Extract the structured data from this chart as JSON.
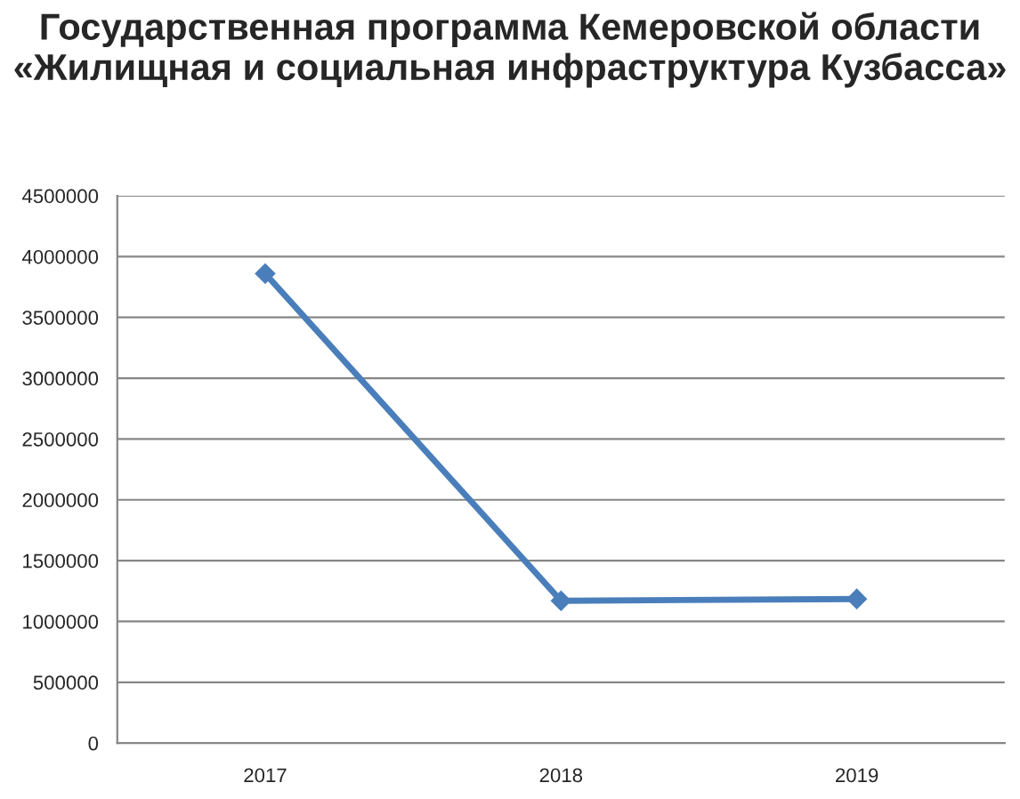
{
  "chart_data": {
    "type": "line",
    "title": "Государственная программа Кемеровской области «Жилищная и социальная инфраструктура Кузбасса»",
    "categories": [
      "2017",
      "2018",
      "2019"
    ],
    "series": [
      {
        "color": "#4a7ebb",
        "values": [
          3860000,
          1170000,
          1185000
        ]
      }
    ],
    "ylim": [
      0,
      4500000
    ],
    "yticks": [
      0,
      500000,
      1000000,
      1500000,
      2000000,
      2500000,
      3000000,
      3500000,
      4000000,
      4500000
    ],
    "grid": "y",
    "marker": "diamond",
    "line_style": "solid",
    "legend": false
  }
}
